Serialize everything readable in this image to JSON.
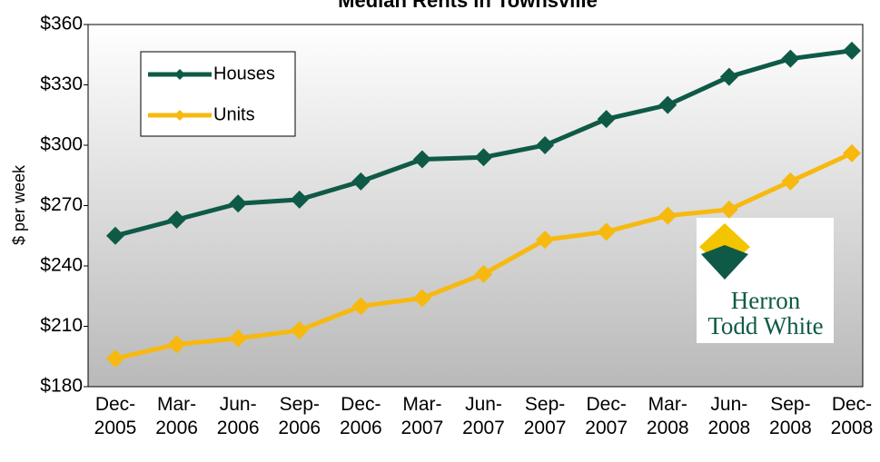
{
  "chart_data": {
    "type": "line",
    "title": "Median Rents in Townsville",
    "y_label": "$ per week",
    "categories": [
      "Dec-2005",
      "Mar-2006",
      "Jun-2006",
      "Sep-2006",
      "Dec-2006",
      "Mar-2007",
      "Jun-2007",
      "Sep-2007",
      "Dec-2007",
      "Mar-2008",
      "Jun-2008",
      "Sep-2008",
      "Dec-2008"
    ],
    "series": [
      {
        "name": "Houses",
        "color": "#0f5a46",
        "values": [
          255,
          263,
          271,
          273,
          282,
          293,
          294,
          300,
          313,
          320,
          334,
          343,
          347
        ]
      },
      {
        "name": "Units",
        "color": "#f7b90f",
        "values": [
          194,
          201,
          204,
          208,
          220,
          224,
          236,
          253,
          257,
          265,
          268,
          282,
          296
        ]
      }
    ],
    "ylim": [
      180,
      360
    ],
    "yticks": [
      {
        "value": 180,
        "label": "$180"
      },
      {
        "value": 210,
        "label": "$210"
      },
      {
        "value": 240,
        "label": "$240"
      },
      {
        "value": 270,
        "label": "$270"
      },
      {
        "value": 300,
        "label": "$300"
      },
      {
        "value": 330,
        "label": "$330"
      },
      {
        "value": 360,
        "label": "$360"
      }
    ],
    "legend": "top-left"
  },
  "logo": {
    "lines": [
      "Herron",
      "Todd White"
    ]
  }
}
